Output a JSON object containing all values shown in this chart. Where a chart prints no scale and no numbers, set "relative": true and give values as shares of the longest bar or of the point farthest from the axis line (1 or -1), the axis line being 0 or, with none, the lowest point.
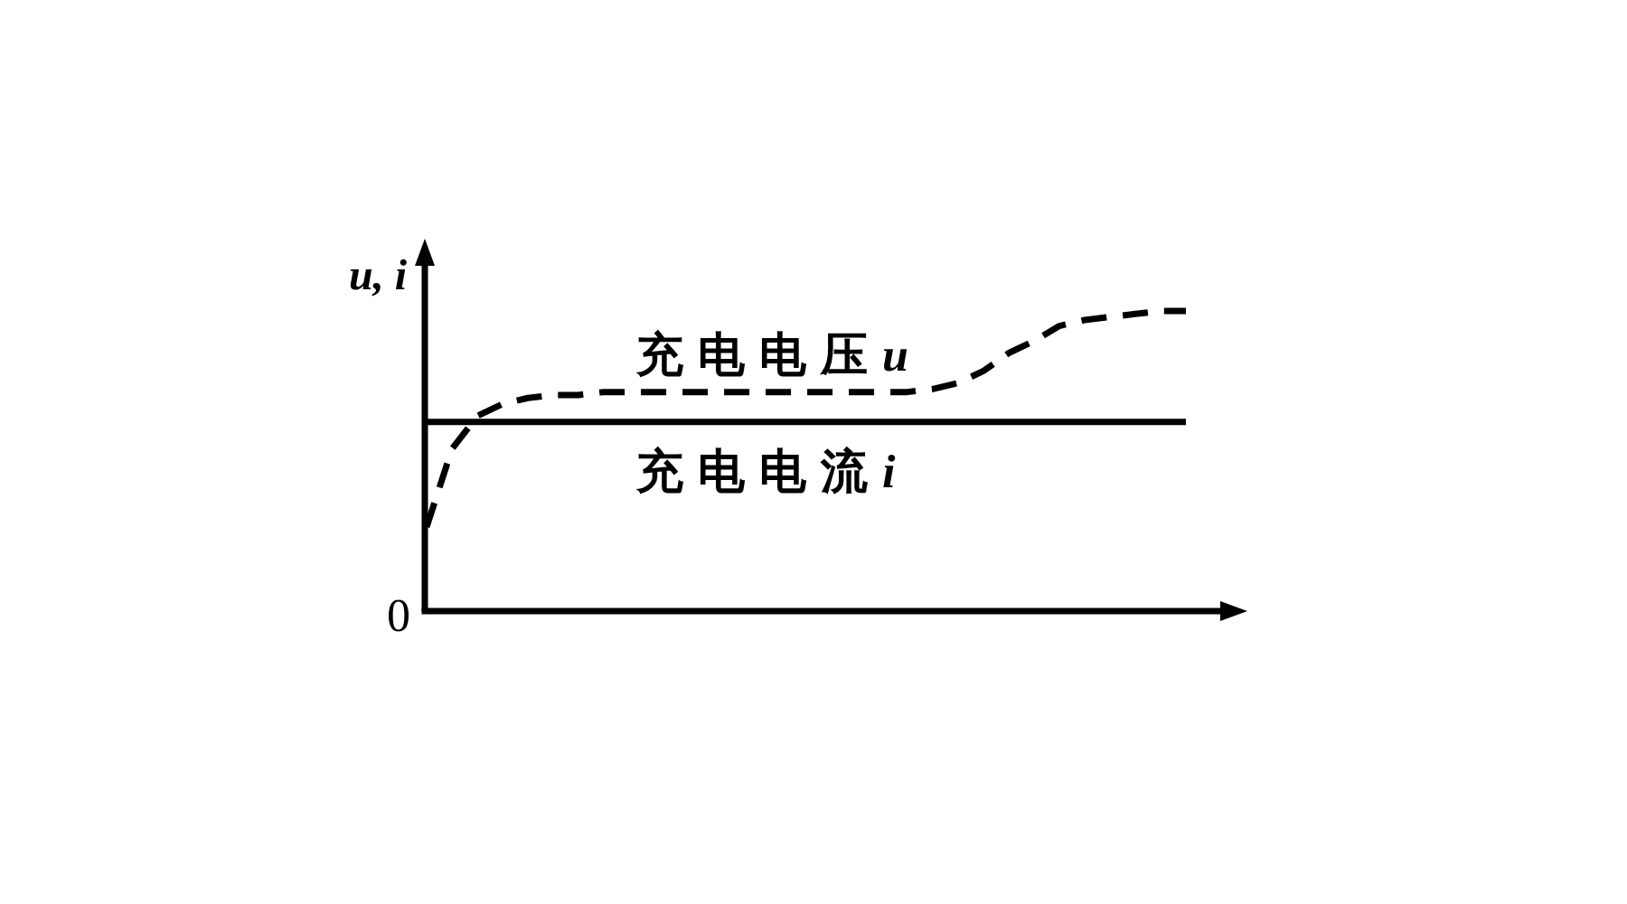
{
  "chart_data": {
    "type": "line",
    "relative": true,
    "ylabel": "u, i",
    "categories": [
      null,
      null,
      null,
      null,
      null,
      null,
      null,
      null,
      null,
      null,
      null,
      null,
      null,
      null,
      null,
      null,
      null,
      null,
      null,
      null,
      null,
      null,
      null,
      null,
      null,
      null,
      null,
      null,
      null,
      null,
      null
    ],
    "series": [
      {
        "name": "充电电压u",
        "color": "#000000",
        "line_style": "dashed",
        "values": [
          0.28,
          0.54,
          0.65,
          0.69,
          0.71,
          0.72,
          0.72,
          0.73,
          0.73,
          0.73,
          0.73,
          0.73,
          0.73,
          0.73,
          0.73,
          0.73,
          0.73,
          0.73,
          0.73,
          0.73,
          0.74,
          0.76,
          0.8,
          0.86,
          0.9,
          0.95,
          0.97,
          0.98,
          0.99,
          1,
          1
        ]
      },
      {
        "name": "充电电流i",
        "color": "#000000",
        "line_style": "solid",
        "values": [
          0.63,
          0.63,
          0.63,
          0.63,
          0.63,
          0.63,
          0.63,
          0.63,
          0.63,
          0.63,
          0.63,
          0.63,
          0.63,
          0.63,
          0.63,
          0.63,
          0.63,
          0.63,
          0.63,
          0.63,
          0.63,
          0.63,
          0.63,
          0.63,
          0.63,
          0.63,
          0.63,
          0.63,
          0.63,
          0.63,
          0.63
        ]
      }
    ],
    "annotations": [
      "0"
    ]
  }
}
